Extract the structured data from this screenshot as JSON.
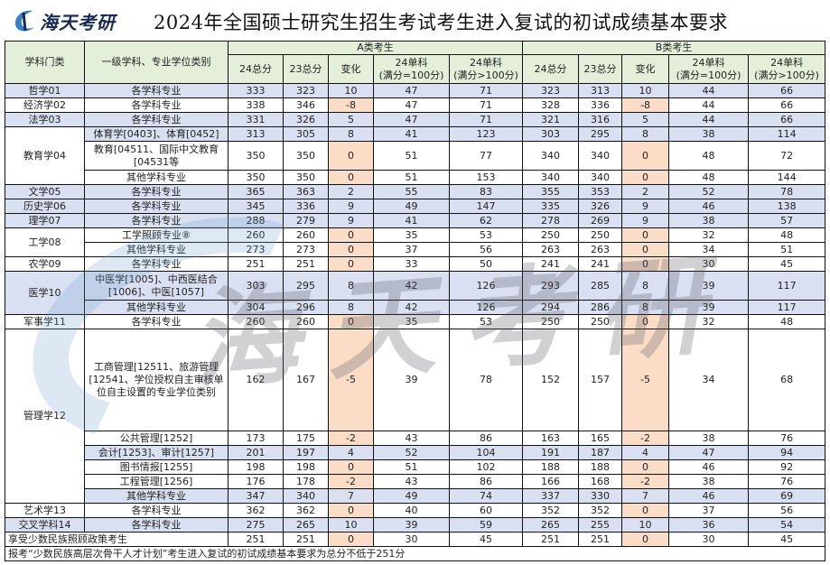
{
  "brand": {
    "logo_text": "海天考研",
    "watermark": "海天考研"
  },
  "title": "2024年全国硕士研究生招生考试考生进入复试的初试成绩基本要求",
  "headers": {
    "category": "学科门类",
    "discipline": "一级学科、专业学位类别",
    "group_a": "A类考生",
    "group_b": "B类考生",
    "cols": [
      "24总分",
      "23总分",
      "变化",
      "24单科\n(满分=100分)",
      "24单科\n(满分>100分)"
    ]
  },
  "colors": {
    "header_bg": "#e3efd8",
    "increase_row": "#d9e0f1",
    "nonpositive_change": "#fbdcc6"
  },
  "rows": [
    {
      "category": "哲学01",
      "span": 1,
      "name": "各学科专业",
      "a": [
        "333",
        "323",
        "10",
        "47",
        "71"
      ],
      "b": [
        "323",
        "313",
        "10",
        "44",
        "66"
      ]
    },
    {
      "category": "经济学02",
      "span": 1,
      "name": "各学科专业",
      "a": [
        "338",
        "346",
        "-8",
        "47",
        "71"
      ],
      "b": [
        "328",
        "336",
        "-8",
        "44",
        "66"
      ]
    },
    {
      "category": "法学03",
      "span": 1,
      "name": "各学科专业",
      "a": [
        "331",
        "326",
        "5",
        "47",
        "71"
      ],
      "b": [
        "321",
        "316",
        "5",
        "44",
        "66"
      ]
    },
    {
      "category": "教育学04",
      "span": 3,
      "name": "体育学[0403]、体育[0452]",
      "a": [
        "313",
        "305",
        "8",
        "41",
        "123"
      ],
      "b": [
        "303",
        "295",
        "8",
        "38",
        "114"
      ]
    },
    {
      "name": "教育[04511、国际中文教育[04531等",
      "a": [
        "350",
        "350",
        "0",
        "51",
        "77"
      ],
      "b": [
        "340",
        "340",
        "0",
        "48",
        "72"
      ],
      "h": 32
    },
    {
      "name": "其他学科专业",
      "a": [
        "350",
        "350",
        "0",
        "51",
        "153"
      ],
      "b": [
        "340",
        "340",
        "0",
        "48",
        "144"
      ]
    },
    {
      "category": "文学05",
      "span": 1,
      "name": "各学科专业",
      "a": [
        "365",
        "363",
        "2",
        "55",
        "83"
      ],
      "b": [
        "355",
        "353",
        "2",
        "52",
        "78"
      ]
    },
    {
      "category": "历史学06",
      "span": 1,
      "name": "各学科专业",
      "a": [
        "345",
        "336",
        "9",
        "49",
        "147"
      ],
      "b": [
        "335",
        "326",
        "9",
        "46",
        "138"
      ]
    },
    {
      "category": "理学07",
      "span": 1,
      "name": "各学科专业",
      "a": [
        "288",
        "279",
        "9",
        "41",
        "62"
      ],
      "b": [
        "278",
        "269",
        "9",
        "38",
        "57"
      ]
    },
    {
      "category": "工学08",
      "span": 2,
      "name": "工学照顾专业⑧",
      "a": [
        "260",
        "260",
        "0",
        "35",
        "53"
      ],
      "b": [
        "250",
        "250",
        "0",
        "32",
        "48"
      ]
    },
    {
      "name": "其他学科专业",
      "a": [
        "273",
        "273",
        "0",
        "37",
        "56"
      ],
      "b": [
        "263",
        "263",
        "0",
        "34",
        "51"
      ]
    },
    {
      "category": "农学09",
      "span": 1,
      "name": "各学科专业",
      "a": [
        "251",
        "251",
        "0",
        "33",
        "50"
      ],
      "b": [
        "241",
        "241",
        "0",
        "30",
        "45"
      ]
    },
    {
      "category": "医学10",
      "span": 2,
      "name": "中医学[1005]、中西医结合[1006]、中医[1057]",
      "a": [
        "303",
        "295",
        "8",
        "42",
        "126"
      ],
      "b": [
        "293",
        "285",
        "8",
        "39",
        "117"
      ],
      "h": 32
    },
    {
      "name": "其他学科专业",
      "a": [
        "304",
        "296",
        "8",
        "42",
        "126"
      ],
      "b": [
        "294",
        "286",
        "8",
        "39",
        "117"
      ]
    },
    {
      "category": "军事学11",
      "span": 1,
      "name": "各学科专业",
      "a": [
        "260",
        "260",
        "0",
        "35",
        "53"
      ],
      "b": [
        "250",
        "250",
        "0",
        "32",
        "48"
      ]
    },
    {
      "category": "管理学12",
      "span": 6,
      "name": "工商管理[12511、旅游管理[12541、学位授权自主审核单位自主设置的专业学位类别",
      "a": [
        "162",
        "167",
        "-5",
        "39",
        "78"
      ],
      "b": [
        "152",
        "157",
        "-5",
        "34",
        "68"
      ],
      "h": 113
    },
    {
      "name": "公共管理[1252]",
      "a": [
        "173",
        "175",
        "-2",
        "43",
        "86"
      ],
      "b": [
        "163",
        "165",
        "-2",
        "38",
        "76"
      ]
    },
    {
      "name": "会计[1253]、审计[1257]",
      "a": [
        "201",
        "197",
        "4",
        "52",
        "104"
      ],
      "b": [
        "191",
        "187",
        "4",
        "47",
        "94"
      ]
    },
    {
      "name": "图书情报[1255]",
      "a": [
        "198",
        "198",
        "0",
        "51",
        "102"
      ],
      "b": [
        "188",
        "188",
        "0",
        "46",
        "92"
      ]
    },
    {
      "name": "工程管理[1256]",
      "a": [
        "176",
        "178",
        "-2",
        "43",
        "86"
      ],
      "b": [
        "166",
        "168",
        "-2",
        "38",
        "76"
      ]
    },
    {
      "name": "其他学科专业",
      "a": [
        "347",
        "340",
        "7",
        "49",
        "74"
      ],
      "b": [
        "337",
        "330",
        "7",
        "46",
        "69"
      ]
    },
    {
      "category": "艺术学13",
      "span": 1,
      "name": "各学科专业",
      "a": [
        "362",
        "362",
        "0",
        "40",
        "60"
      ],
      "b": [
        "352",
        "352",
        "0",
        "37",
        "56"
      ]
    },
    {
      "category": "交叉学科14",
      "span": 1,
      "name": "各学科专业",
      "a": [
        "275",
        "265",
        "10",
        "39",
        "59"
      ],
      "b": [
        "265",
        "255",
        "10",
        "36",
        "54"
      ]
    },
    {
      "category": "享受少数民族照顾政策考生",
      "merged": true,
      "a": [
        "251",
        "251",
        "0",
        "30",
        "45"
      ],
      "b": [
        "251",
        "251",
        "0",
        "30",
        "45"
      ]
    }
  ],
  "footnote": "报考“少数民族高层次骨干人才计划”考生进入复试的初试成绩基本要求为总分不低于251分"
}
